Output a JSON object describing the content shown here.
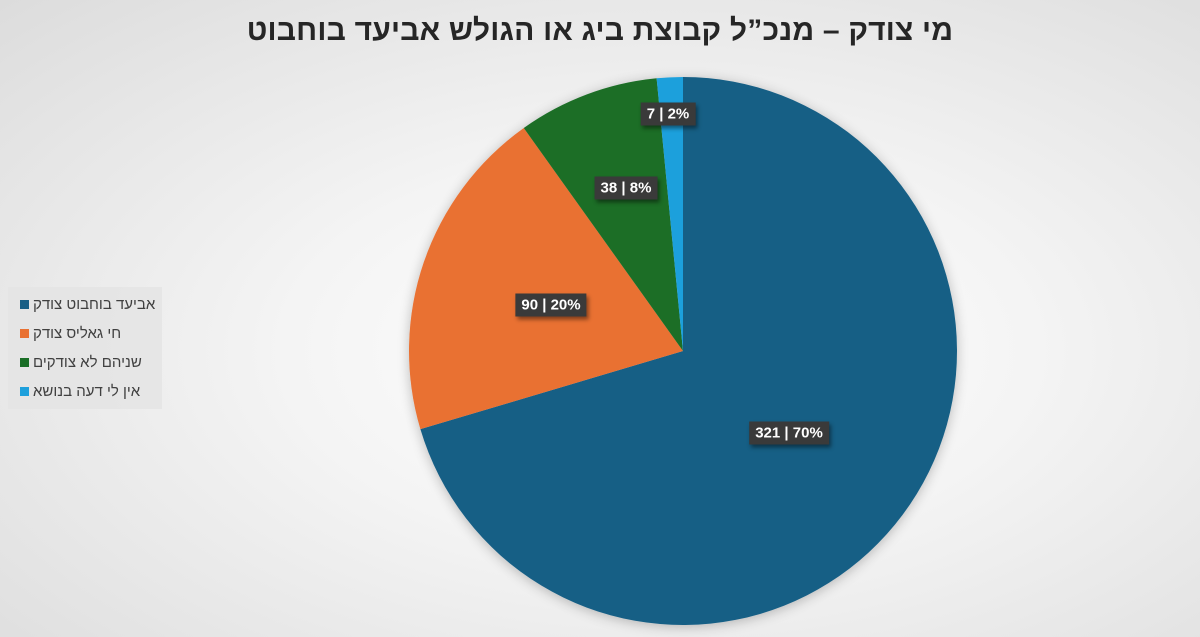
{
  "title": "מי צודק – מנכ”ל קבוצת ביג או הגולש אביעד בוחבוט",
  "legend": {
    "items": [
      {
        "label": "אביעד בוחבוט צודק",
        "color": "#195f85"
      },
      {
        "label": "חי גאליס צודק",
        "color": "#e97132"
      },
      {
        "label": "שניהם לא צודקים",
        "color": "#1a6e27"
      },
      {
        "label": "אין לי דעה בנושא",
        "color": "#1ea0dc"
      }
    ]
  },
  "labels": {
    "slice0": "321 | 70%",
    "slice1": "90 | 20%",
    "slice2": "38 | 8%",
    "slice3": "7 | 2%"
  },
  "chart_data": {
    "type": "pie",
    "title": "מי צודק – מנכ”ל קבוצת ביג או הגולש אביעד בוחבוט",
    "categories": [
      "אביעד בוחבוט צודק",
      "חי גאליס צודק",
      "שניהם לא צודקים",
      "אין לי דעה בנושא"
    ],
    "values": [
      321,
      90,
      38,
      7
    ],
    "percentages": [
      70,
      20,
      8,
      2
    ],
    "colors": [
      "#195f85",
      "#e97132",
      "#1a6e27",
      "#1ea0dc"
    ],
    "data_label_format": "value | percent",
    "legend_position": "left",
    "start_angle": "12 o'clock, clockwise"
  }
}
